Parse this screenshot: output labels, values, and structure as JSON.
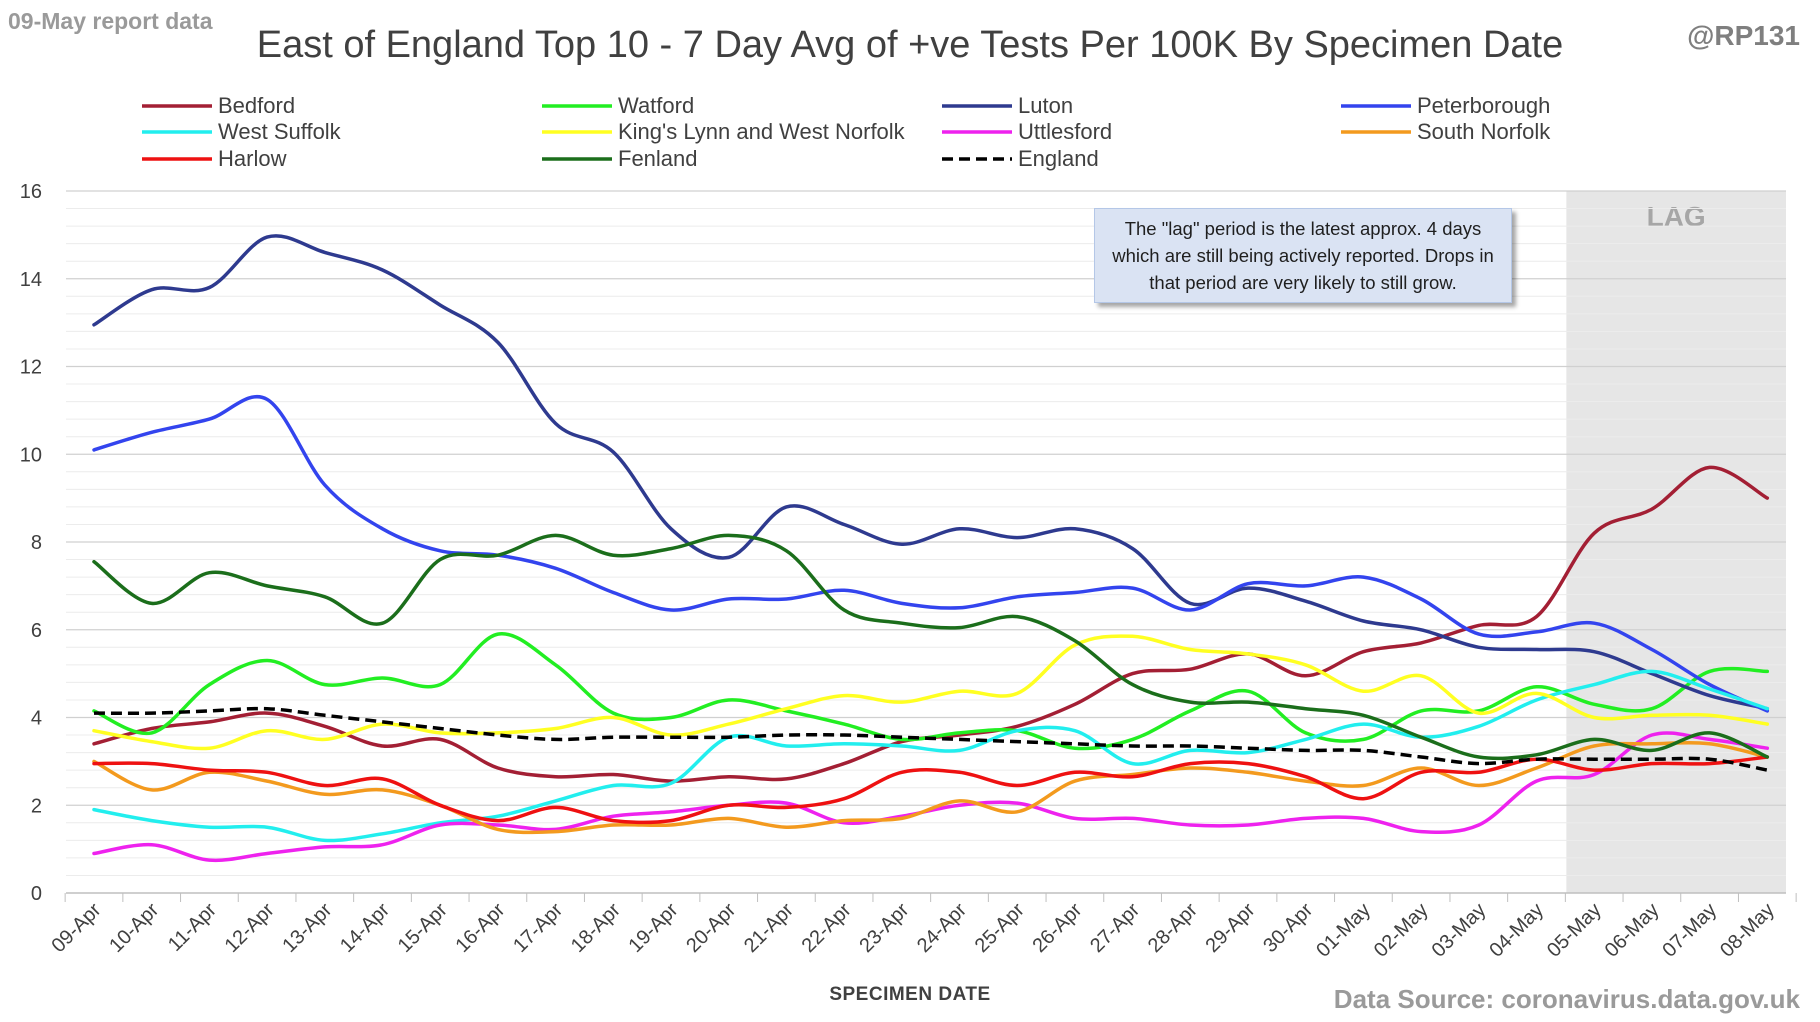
{
  "corner_left": "09-May report data",
  "corner_right": "@RP131",
  "source": "Data Source: coronavirus.data.gov.uk",
  "annotation": "The \"lag\" period is the latest approx. 4 days which are still being actively reported.  Drops in that period are very likely to still grow.",
  "chart_data": {
    "type": "line",
    "title": "East of England Top 10 - 7 Day Avg of +ve Tests Per 100K By Specimen Date",
    "xlabel": "SPECIMEN DATE",
    "ylabel": "",
    "ylim": [
      0,
      16
    ],
    "yticks": [
      0,
      2,
      4,
      6,
      8,
      10,
      12,
      14,
      16
    ],
    "grid": true,
    "legend_position": "top",
    "shaded_region": {
      "label": "LAG",
      "from": "05-May",
      "to": "08-May",
      "color": "#e6e6e6"
    },
    "categories": [
      "09-Apr",
      "10-Apr",
      "11-Apr",
      "12-Apr",
      "13-Apr",
      "14-Apr",
      "15-Apr",
      "16-Apr",
      "17-Apr",
      "18-Apr",
      "19-Apr",
      "20-Apr",
      "21-Apr",
      "22-Apr",
      "23-Apr",
      "24-Apr",
      "25-Apr",
      "26-Apr",
      "27-Apr",
      "28-Apr",
      "29-Apr",
      "30-Apr",
      "01-May",
      "02-May",
      "03-May",
      "04-May",
      "05-May",
      "06-May",
      "07-May",
      "08-May"
    ],
    "series": [
      {
        "name": "Bedford",
        "color": "#a31f34",
        "dashed": false,
        "values": [
          3.4,
          3.75,
          3.9,
          4.1,
          3.8,
          3.35,
          3.5,
          2.85,
          2.65,
          2.7,
          2.55,
          2.65,
          2.6,
          2.95,
          3.45,
          3.6,
          3.8,
          4.3,
          5.0,
          5.1,
          5.45,
          4.95,
          5.5,
          5.7,
          6.1,
          6.3,
          8.2,
          8.75,
          9.7,
          9.0
        ]
      },
      {
        "name": "Watford",
        "color": "#22ee22",
        "dashed": false,
        "values": [
          4.15,
          3.65,
          4.75,
          5.3,
          4.75,
          4.9,
          4.75,
          5.9,
          5.2,
          4.1,
          4.0,
          4.4,
          4.15,
          3.85,
          3.5,
          3.65,
          3.7,
          3.3,
          3.5,
          4.15,
          4.6,
          3.65,
          3.5,
          4.15,
          4.15,
          4.7,
          4.3,
          4.2,
          5.05,
          5.05
        ]
      },
      {
        "name": "Luton",
        "color": "#2e3a8f",
        "dashed": false,
        "values": [
          12.95,
          13.75,
          13.8,
          14.95,
          14.6,
          14.2,
          13.4,
          12.55,
          10.7,
          10.05,
          8.3,
          7.65,
          8.8,
          8.4,
          7.95,
          8.3,
          8.1,
          8.3,
          7.85,
          6.6,
          6.95,
          6.65,
          6.2,
          6.0,
          5.6,
          5.55,
          5.5,
          5.0,
          4.5,
          4.2
        ]
      },
      {
        "name": "Peterborough",
        "color": "#3344ee",
        "dashed": false,
        "values": [
          10.1,
          10.5,
          10.8,
          11.25,
          9.3,
          8.3,
          7.8,
          7.7,
          7.4,
          6.85,
          6.45,
          6.7,
          6.7,
          6.9,
          6.6,
          6.5,
          6.75,
          6.85,
          6.95,
          6.45,
          7.05,
          7.0,
          7.2,
          6.7,
          5.9,
          5.95,
          6.15,
          5.55,
          4.75,
          4.15
        ]
      },
      {
        "name": "West Suffolk",
        "color": "#22eeee",
        "dashed": false,
        "values": [
          1.9,
          1.65,
          1.5,
          1.5,
          1.2,
          1.35,
          1.6,
          1.75,
          2.1,
          2.45,
          2.5,
          3.55,
          3.35,
          3.4,
          3.35,
          3.25,
          3.7,
          3.7,
          2.95,
          3.25,
          3.2,
          3.5,
          3.85,
          3.55,
          3.8,
          4.4,
          4.75,
          5.05,
          4.65,
          4.2
        ]
      },
      {
        "name": "King's Lynn and West Norfolk",
        "color": "#ffff22",
        "dashed": false,
        "values": [
          3.7,
          3.45,
          3.3,
          3.7,
          3.5,
          3.85,
          3.65,
          3.65,
          3.75,
          4.0,
          3.6,
          3.85,
          4.2,
          4.5,
          4.35,
          4.6,
          4.55,
          5.65,
          5.85,
          5.55,
          5.45,
          5.2,
          4.6,
          4.95,
          4.1,
          4.55,
          4.0,
          4.05,
          4.05,
          3.85
        ]
      },
      {
        "name": "Uttlesford",
        "color": "#ee22ee",
        "dashed": false,
        "values": [
          0.9,
          1.1,
          0.75,
          0.9,
          1.05,
          1.1,
          1.55,
          1.55,
          1.45,
          1.75,
          1.85,
          2.0,
          2.05,
          1.6,
          1.75,
          2.0,
          2.05,
          1.7,
          1.7,
          1.55,
          1.55,
          1.7,
          1.7,
          1.4,
          1.55,
          2.55,
          2.7,
          3.6,
          3.5,
          3.3
        ]
      },
      {
        "name": "South Norfolk",
        "color": "#f39a1e",
        "dashed": false,
        "values": [
          3.0,
          2.35,
          2.75,
          2.55,
          2.25,
          2.35,
          2.0,
          1.45,
          1.4,
          1.55,
          1.55,
          1.7,
          1.5,
          1.65,
          1.7,
          2.1,
          1.85,
          2.55,
          2.7,
          2.85,
          2.75,
          2.55,
          2.45,
          2.85,
          2.45,
          2.85,
          3.35,
          3.4,
          3.4,
          3.1
        ]
      },
      {
        "name": "Harlow",
        "color": "#ee1111",
        "dashed": false,
        "values": [
          2.95,
          2.95,
          2.8,
          2.75,
          2.45,
          2.6,
          2.0,
          1.65,
          1.95,
          1.65,
          1.65,
          2.0,
          1.95,
          2.15,
          2.75,
          2.75,
          2.45,
          2.75,
          2.65,
          2.95,
          2.95,
          2.65,
          2.15,
          2.75,
          2.75,
          3.05,
          2.8,
          2.95,
          2.95,
          3.1
        ]
      },
      {
        "name": "Fenland",
        "color": "#1b6e1b",
        "dashed": false,
        "values": [
          7.55,
          6.6,
          7.3,
          7.0,
          6.75,
          6.15,
          7.6,
          7.7,
          8.15,
          7.7,
          7.85,
          8.15,
          7.8,
          6.45,
          6.15,
          6.05,
          6.3,
          5.75,
          4.75,
          4.35,
          4.35,
          4.2,
          4.05,
          3.55,
          3.1,
          3.15,
          3.5,
          3.25,
          3.65,
          3.1
        ]
      },
      {
        "name": "England",
        "color": "#000000",
        "dashed": true,
        "values": [
          4.1,
          4.1,
          4.15,
          4.2,
          4.05,
          3.9,
          3.75,
          3.6,
          3.5,
          3.55,
          3.55,
          3.55,
          3.6,
          3.6,
          3.55,
          3.5,
          3.45,
          3.4,
          3.35,
          3.35,
          3.3,
          3.25,
          3.25,
          3.1,
          2.95,
          3.05,
          3.05,
          3.05,
          3.05,
          2.8
        ]
      }
    ]
  }
}
